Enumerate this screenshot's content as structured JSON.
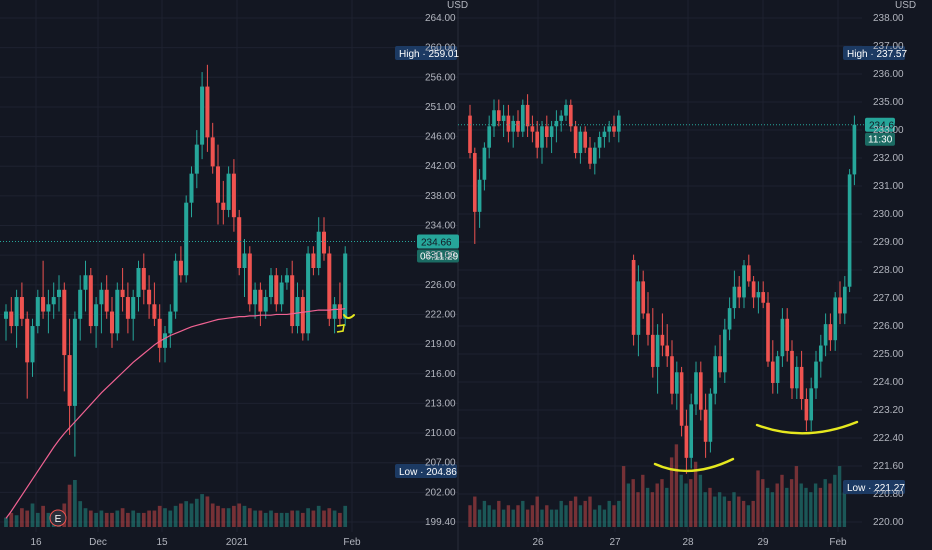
{
  "colors": {
    "background": "#131722",
    "grid": "#1e2230",
    "up": "#26a69a",
    "down": "#ef5350",
    "ma": "#f06292",
    "annotation": "#e6e81f",
    "tag_bg": "#1c3a63",
    "current": "#26a69a"
  },
  "chart_data": [
    {
      "type": "candlestick",
      "currency": "USD",
      "ylim": [
        196,
        266
      ],
      "y_ticks": [
        "264.00",
        "260.00",
        "256.00",
        "251.00",
        "246.00",
        "242.00",
        "238.00",
        "234.00",
        "230.00",
        "226.00",
        "222.00",
        "219.00",
        "216.00",
        "213.00",
        "210.00",
        "207.00",
        "202.00",
        "199.40"
      ],
      "x_ticks": [
        "16",
        "Dec",
        "15",
        "2021",
        "Feb"
      ],
      "high_label": "High · 259.01",
      "low_label": "Low · 204.86",
      "current_price": "234.66",
      "countdown": "06:11:29",
      "earnings_marker": "E",
      "candles": [
        [
          224,
          226,
          221,
          225
        ],
        [
          225,
          227,
          222,
          223
        ],
        [
          223,
          228,
          220,
          227
        ],
        [
          227,
          229,
          223,
          224
        ],
        [
          224,
          225,
          213,
          218
        ],
        [
          218,
          224,
          216,
          223
        ],
        [
          223,
          228,
          222,
          227
        ],
        [
          227,
          232,
          224,
          225
        ],
        [
          225,
          228,
          222,
          226
        ],
        [
          226,
          229,
          224,
          227
        ],
        [
          227,
          230,
          225,
          228
        ],
        [
          228,
          229,
          214,
          219
        ],
        [
          219,
          224,
          208,
          212
        ],
        [
          212,
          225,
          205,
          224
        ],
        [
          224,
          230,
          221,
          228
        ],
        [
          228,
          232,
          225,
          230
        ],
        [
          230,
          231,
          222,
          223
        ],
        [
          223,
          227,
          220,
          226
        ],
        [
          226,
          229,
          222,
          228
        ],
        [
          228,
          230,
          224,
          225
        ],
        [
          225,
          227,
          220,
          222
        ],
        [
          222,
          229,
          221,
          228
        ],
        [
          228,
          231,
          225,
          227
        ],
        [
          227,
          229,
          222,
          224
        ],
        [
          224,
          228,
          221,
          227
        ],
        [
          227,
          232,
          225,
          231
        ],
        [
          231,
          233,
          226,
          228
        ],
        [
          228,
          230,
          224,
          226
        ],
        [
          226,
          229,
          223,
          224
        ],
        [
          224,
          226,
          218,
          220
        ],
        [
          220,
          223,
          218,
          222
        ],
        [
          222,
          226,
          220,
          225
        ],
        [
          225,
          233,
          224,
          232
        ],
        [
          232,
          234,
          229,
          230
        ],
        [
          230,
          241,
          229,
          240
        ],
        [
          240,
          245,
          238,
          244
        ],
        [
          244,
          250,
          242,
          248
        ],
        [
          248,
          258,
          246,
          256
        ],
        [
          256,
          259,
          247,
          249
        ],
        [
          249,
          251,
          244,
          245
        ],
        [
          245,
          248,
          237,
          240
        ],
        [
          240,
          243,
          237,
          239
        ],
        [
          239,
          245,
          238,
          244
        ],
        [
          244,
          246,
          236,
          238
        ],
        [
          238,
          239,
          230,
          231
        ],
        [
          231,
          235,
          227,
          233
        ],
        [
          233,
          234,
          225,
          226
        ],
        [
          226,
          229,
          224,
          228
        ],
        [
          228,
          229,
          223,
          225
        ],
        [
          225,
          228,
          224,
          227
        ],
        [
          227,
          231,
          226,
          230
        ],
        [
          230,
          231,
          225,
          226
        ],
        [
          226,
          230,
          225,
          229
        ],
        [
          229,
          231,
          228,
          230
        ],
        [
          230,
          232,
          222,
          223
        ],
        [
          223,
          229,
          222,
          227
        ],
        [
          227,
          228,
          221,
          222
        ],
        [
          222,
          234,
          221,
          233
        ],
        [
          233,
          234,
          230,
          231
        ],
        [
          231,
          238,
          230,
          236
        ],
        [
          236,
          238,
          232,
          233
        ],
        [
          233,
          234,
          223,
          224
        ],
        [
          224,
          227,
          222,
          226
        ],
        [
          226,
          229,
          223,
          224
        ],
        [
          224,
          234,
          223,
          233
        ]
      ],
      "volume": [
        0.2,
        0.3,
        0.25,
        0.4,
        0.35,
        0.5,
        0.3,
        0.45,
        0.3,
        0.25,
        0.3,
        0.5,
        0.9,
        1.0,
        0.55,
        0.4,
        0.35,
        0.3,
        0.35,
        0.3,
        0.3,
        0.35,
        0.4,
        0.3,
        0.35,
        0.3,
        0.3,
        0.35,
        0.35,
        0.45,
        0.4,
        0.35,
        0.45,
        0.5,
        0.55,
        0.5,
        0.6,
        0.7,
        0.65,
        0.5,
        0.45,
        0.4,
        0.4,
        0.45,
        0.5,
        0.45,
        0.4,
        0.35,
        0.35,
        0.3,
        0.35,
        0.3,
        0.3,
        0.3,
        0.35,
        0.35,
        0.3,
        0.4,
        0.35,
        0.45,
        0.35,
        0.4,
        0.35,
        0.3,
        0.45
      ],
      "ma": [
        196.5,
        197.5,
        198.6,
        199.7,
        200.8,
        201.9,
        203.0,
        204.1,
        205.2,
        206.3,
        207.3,
        208.2,
        209.0,
        209.8,
        210.6,
        211.4,
        212.2,
        213.0,
        213.8,
        214.5,
        215.2,
        215.9,
        216.6,
        217.3,
        218.0,
        218.6,
        219.2,
        219.8,
        220.4,
        220.9,
        221.3,
        221.7,
        222.0,
        222.3,
        222.6,
        222.9,
        223.1,
        223.3,
        223.5,
        223.7,
        223.9,
        224.0,
        224.1,
        224.2,
        224.3,
        224.3,
        224.4,
        224.4,
        224.5,
        224.5,
        224.5,
        224.6,
        224.6,
        224.6,
        224.7,
        224.8,
        224.9,
        225.0,
        225.1,
        225.2,
        225.2,
        225.2,
        225.3,
        225.3,
        225.4
      ]
    },
    {
      "type": "candlestick",
      "currency": "USD",
      "ylim": [
        219.8,
        238.8
      ],
      "y_ticks": [
        "238.00",
        "237.00",
        "236.00",
        "235.00",
        "233.00",
        "232.00",
        "231.00",
        "230.00",
        "229.00",
        "228.00",
        "227.00",
        "226.00",
        "225.00",
        "224.00",
        "223.20",
        "222.40",
        "221.60",
        "220.80",
        "220.00"
      ],
      "x_ticks": [
        "26",
        "27",
        "28",
        "29",
        "Feb"
      ],
      "high_label": "High · 237.57",
      "low_label": "Low · 221.27",
      "current_price": "234.66",
      "countdown": "11:30",
      "candles": [
        [
          235.0,
          235.4,
          233.4,
          233.6
        ],
        [
          233.6,
          233.8,
          230.2,
          231.4
        ],
        [
          231.4,
          233.0,
          230.8,
          232.6
        ],
        [
          232.6,
          234.0,
          232.2,
          233.8
        ],
        [
          233.8,
          235.0,
          233.4,
          234.6
        ],
        [
          234.6,
          235.6,
          234.2,
          235.2
        ],
        [
          235.2,
          235.6,
          234.6,
          234.8
        ],
        [
          234.8,
          235.4,
          234.2,
          235.0
        ],
        [
          235.0,
          235.4,
          234.0,
          234.4
        ],
        [
          234.4,
          235.0,
          233.8,
          234.8
        ],
        [
          234.8,
          235.2,
          234.2,
          234.4
        ],
        [
          234.4,
          235.6,
          234.2,
          235.4
        ],
        [
          235.4,
          235.8,
          234.2,
          234.6
        ],
        [
          234.6,
          235.0,
          234.0,
          234.4
        ],
        [
          234.4,
          234.8,
          233.4,
          233.8
        ],
        [
          233.8,
          234.8,
          233.2,
          234.6
        ],
        [
          234.6,
          235.0,
          233.8,
          234.2
        ],
        [
          234.2,
          234.8,
          233.6,
          234.6
        ],
        [
          234.6,
          235.2,
          234.0,
          234.8
        ],
        [
          234.8,
          235.2,
          234.4,
          235.0
        ],
        [
          235.0,
          235.6,
          234.8,
          235.4
        ],
        [
          235.4,
          235.6,
          234.4,
          234.6
        ],
        [
          234.6,
          234.8,
          233.4,
          233.6
        ],
        [
          233.6,
          234.6,
          233.2,
          234.4
        ],
        [
          234.4,
          234.6,
          233.6,
          233.8
        ],
        [
          233.8,
          234.2,
          233.0,
          233.2
        ],
        [
          233.2,
          234.0,
          232.8,
          233.8
        ],
        [
          233.8,
          234.4,
          233.4,
          234.2
        ],
        [
          234.2,
          234.6,
          233.8,
          234.4
        ],
        [
          234.4,
          234.8,
          234.0,
          234.6
        ],
        [
          234.6,
          235.0,
          234.2,
          234.4
        ],
        [
          234.4,
          235.2,
          234.0,
          235.0
        ],
        [
          229.6,
          229.8,
          226.4,
          226.8
        ],
        [
          226.8,
          229.4,
          226.0,
          228.8
        ],
        [
          228.8,
          229.2,
          227.4,
          227.6
        ],
        [
          227.6,
          228.4,
          226.4,
          226.8
        ],
        [
          226.8,
          227.8,
          225.2,
          225.6
        ],
        [
          225.6,
          227.2,
          224.6,
          226.8
        ],
        [
          226.8,
          227.6,
          226.0,
          226.4
        ],
        [
          226.4,
          227.2,
          225.6,
          226.0
        ],
        [
          226.0,
          226.6,
          224.2,
          224.6
        ],
        [
          224.6,
          225.8,
          224.0,
          225.4
        ],
        [
          225.4,
          225.6,
          223.0,
          223.4
        ],
        [
          223.4,
          224.0,
          221.6,
          222.2
        ],
        [
          222.2,
          224.6,
          221.8,
          224.2
        ],
        [
          224.2,
          225.8,
          223.8,
          225.4
        ],
        [
          225.4,
          225.8,
          223.6,
          224.0
        ],
        [
          224.0,
          224.6,
          222.2,
          222.8
        ],
        [
          222.8,
          224.8,
          222.4,
          224.6
        ],
        [
          224.6,
          226.4,
          224.2,
          226.0
        ],
        [
          226.0,
          226.8,
          225.2,
          225.4
        ],
        [
          225.4,
          227.4,
          225.0,
          227.0
        ],
        [
          227.0,
          228.2,
          226.6,
          227.8
        ],
        [
          227.8,
          229.2,
          227.4,
          228.6
        ],
        [
          228.6,
          229.0,
          227.8,
          228.2
        ],
        [
          228.2,
          229.6,
          227.8,
          229.4
        ],
        [
          229.4,
          229.8,
          228.6,
          228.8
        ],
        [
          228.8,
          229.0,
          227.8,
          228.2
        ],
        [
          228.2,
          228.8,
          227.6,
          228.4
        ],
        [
          228.4,
          228.8,
          227.8,
          228.0
        ],
        [
          228.0,
          228.4,
          225.6,
          225.8
        ],
        [
          225.8,
          226.6,
          224.6,
          225.0
        ],
        [
          225.0,
          226.2,
          224.6,
          226.0
        ],
        [
          226.0,
          227.8,
          225.6,
          227.4
        ],
        [
          227.4,
          227.8,
          225.8,
          226.2
        ],
        [
          226.2,
          226.6,
          224.4,
          224.8
        ],
        [
          224.8,
          226.0,
          224.4,
          225.6
        ],
        [
          225.6,
          226.2,
          224.0,
          224.4
        ],
        [
          224.4,
          224.8,
          223.2,
          223.6
        ],
        [
          223.6,
          225.2,
          223.2,
          224.8
        ],
        [
          224.8,
          226.2,
          224.4,
          225.8
        ],
        [
          225.8,
          226.8,
          225.2,
          226.4
        ],
        [
          226.4,
          227.6,
          226.0,
          227.2
        ],
        [
          227.2,
          227.6,
          226.2,
          226.6
        ],
        [
          226.6,
          228.4,
          226.2,
          228.2
        ],
        [
          228.2,
          228.8,
          227.2,
          227.6
        ],
        [
          227.6,
          229.0,
          227.2,
          228.6
        ],
        [
          228.6,
          233.0,
          228.4,
          232.8
        ],
        [
          232.8,
          235.0,
          232.4,
          234.66
        ]
      ],
      "volume": [
        0.25,
        0.35,
        0.2,
        0.3,
        0.25,
        0.2,
        0.3,
        0.2,
        0.25,
        0.2,
        0.25,
        0.3,
        0.2,
        0.25,
        0.35,
        0.2,
        0.25,
        0.2,
        0.2,
        0.3,
        0.25,
        0.3,
        0.35,
        0.25,
        0.3,
        0.35,
        0.2,
        0.25,
        0.2,
        0.3,
        0.25,
        0.3,
        0.7,
        0.5,
        0.55,
        0.4,
        0.6,
        0.45,
        0.4,
        0.5,
        0.55,
        0.45,
        0.8,
        0.95,
        0.6,
        0.5,
        0.55,
        0.75,
        0.6,
        0.4,
        0.45,
        0.35,
        0.4,
        0.35,
        0.3,
        0.4,
        0.35,
        0.3,
        0.25,
        0.3,
        0.65,
        0.55,
        0.45,
        0.4,
        0.5,
        0.6,
        0.45,
        0.55,
        0.7,
        0.5,
        0.45,
        0.4,
        0.5,
        0.45,
        0.55,
        0.5,
        0.6,
        0.7,
        0.4
      ]
    }
  ]
}
